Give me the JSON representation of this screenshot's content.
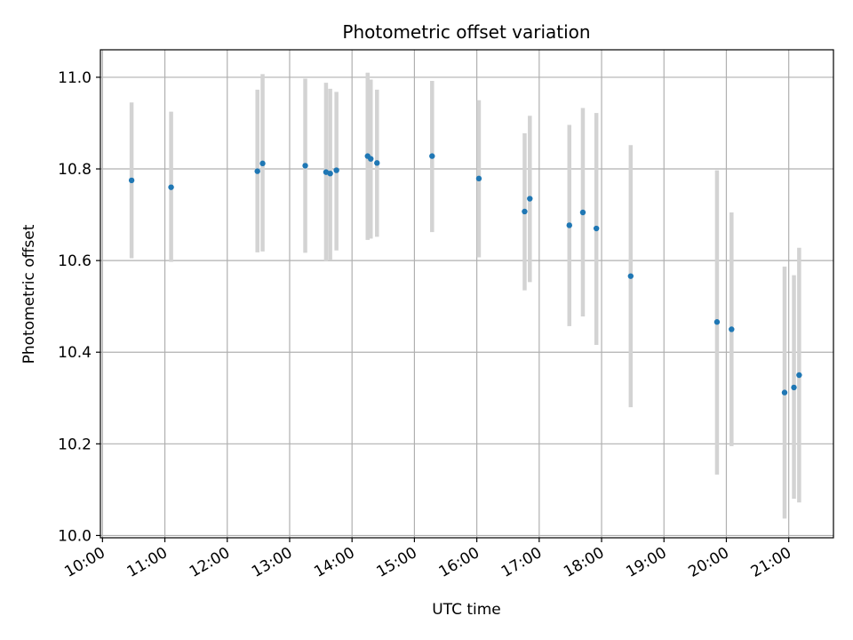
{
  "chart_data": {
    "type": "scatter",
    "title": "Photometric offset variation",
    "xlabel": "UTC time",
    "ylabel": "Photometric offset",
    "xlim": [
      "09:58",
      "21:43"
    ],
    "ylim": [
      9.995,
      11.06
    ],
    "x_ticks": [
      "10:00",
      "11:00",
      "12:00",
      "13:00",
      "14:00",
      "15:00",
      "16:00",
      "17:00",
      "18:00",
      "19:00",
      "20:00",
      "21:00"
    ],
    "y_ticks": [
      10.0,
      10.2,
      10.4,
      10.6,
      10.8,
      11.0
    ],
    "grid": true,
    "colors": {
      "points": "#1f77b4",
      "error_bars": "#d3d3d3",
      "grid": "#b0b0b0"
    },
    "points": [
      {
        "x": "10:28",
        "y": 10.775,
        "ylow": 10.605,
        "yhigh": 10.945
      },
      {
        "x": "11:06",
        "y": 10.76,
        "ylow": 10.597,
        "yhigh": 10.925
      },
      {
        "x": "12:29",
        "y": 10.795,
        "ylow": 10.618,
        "yhigh": 10.973
      },
      {
        "x": "12:34",
        "y": 10.812,
        "ylow": 10.62,
        "yhigh": 11.007
      },
      {
        "x": "13:15",
        "y": 10.807,
        "ylow": 10.617,
        "yhigh": 10.997
      },
      {
        "x": "13:35",
        "y": 10.793,
        "ylow": 10.598,
        "yhigh": 10.988
      },
      {
        "x": "13:39",
        "y": 10.79,
        "ylow": 10.602,
        "yhigh": 10.975
      },
      {
        "x": "13:45",
        "y": 10.797,
        "ylow": 10.622,
        "yhigh": 10.968
      },
      {
        "x": "14:15",
        "y": 10.828,
        "ylow": 10.645,
        "yhigh": 11.01
      },
      {
        "x": "14:18",
        "y": 10.822,
        "ylow": 10.648,
        "yhigh": 10.995
      },
      {
        "x": "14:24",
        "y": 10.813,
        "ylow": 10.652,
        "yhigh": 10.973
      },
      {
        "x": "15:17",
        "y": 10.828,
        "ylow": 10.662,
        "yhigh": 10.992
      },
      {
        "x": "16:02",
        "y": 10.779,
        "ylow": 10.607,
        "yhigh": 10.95
      },
      {
        "x": "16:46",
        "y": 10.707,
        "ylow": 10.535,
        "yhigh": 10.878
      },
      {
        "x": "16:51",
        "y": 10.735,
        "ylow": 10.553,
        "yhigh": 10.916
      },
      {
        "x": "17:29",
        "y": 10.677,
        "ylow": 10.457,
        "yhigh": 10.896
      },
      {
        "x": "17:42",
        "y": 10.705,
        "ylow": 10.478,
        "yhigh": 10.933
      },
      {
        "x": "17:55",
        "y": 10.67,
        "ylow": 10.416,
        "yhigh": 10.922
      },
      {
        "x": "18:28",
        "y": 10.566,
        "ylow": 10.28,
        "yhigh": 10.852
      },
      {
        "x": "19:51",
        "y": 10.466,
        "ylow": 10.133,
        "yhigh": 10.797
      },
      {
        "x": "20:05",
        "y": 10.45,
        "ylow": 10.195,
        "yhigh": 10.705
      },
      {
        "x": "20:56",
        "y": 10.312,
        "ylow": 10.037,
        "yhigh": 10.587
      },
      {
        "x": "21:05",
        "y": 10.323,
        "ylow": 10.08,
        "yhigh": 10.568
      },
      {
        "x": "21:10",
        "y": 10.35,
        "ylow": 10.072,
        "yhigh": 10.628
      }
    ]
  }
}
